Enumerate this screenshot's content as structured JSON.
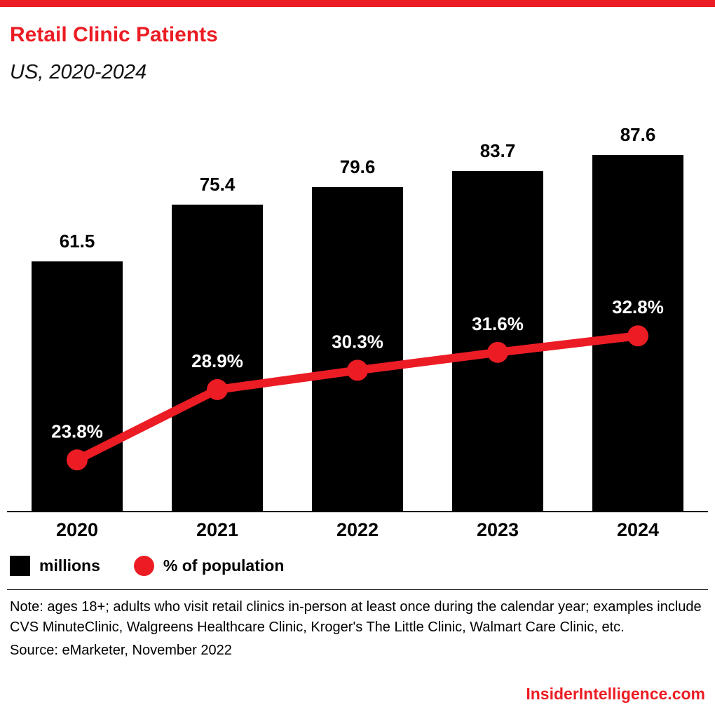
{
  "header": {
    "title": "Retail Clinic Patients",
    "subtitle": "US, 2020-2024"
  },
  "chart_data": {
    "type": "bar",
    "title": "Retail Clinic Patients",
    "subtitle": "US, 2020-2024",
    "categories": [
      "2020",
      "2021",
      "2022",
      "2023",
      "2024"
    ],
    "series": [
      {
        "name": "millions",
        "type": "bar",
        "color": "#000000",
        "values": [
          61.5,
          75.4,
          79.6,
          83.7,
          87.6
        ],
        "value_labels": [
          "61.5",
          "75.4",
          "79.6",
          "83.7",
          "87.6"
        ]
      },
      {
        "name": "% of population",
        "type": "line",
        "color": "#ec1c24",
        "values": [
          23.8,
          28.9,
          30.3,
          31.6,
          32.8
        ],
        "value_labels": [
          "23.8%",
          "28.9%",
          "30.3%",
          "31.6%",
          "32.8%"
        ]
      }
    ],
    "xlabel": "",
    "ylabel": "",
    "grid": false,
    "legend_position": "bottom"
  },
  "legend": {
    "items": [
      {
        "label": "millions",
        "swatch": "square",
        "color": "#000000"
      },
      {
        "label": "% of population",
        "swatch": "circle",
        "color": "#ec1c24"
      }
    ]
  },
  "footnote": {
    "note": "Note: ages 18+; adults who visit retail clinics in-person at least once during the calendar year; examples include CVS MinuteClinic, Walgreens Healthcare Clinic, Kroger's The Little Clinic, Walmart Care Clinic, etc.",
    "source": "Source: eMarketer, November 2022"
  },
  "footer": {
    "brand": "InsiderIntelligence.com"
  },
  "colors": {
    "accent": "#ec1c24",
    "bar": "#000000",
    "background": "#ffffff"
  }
}
